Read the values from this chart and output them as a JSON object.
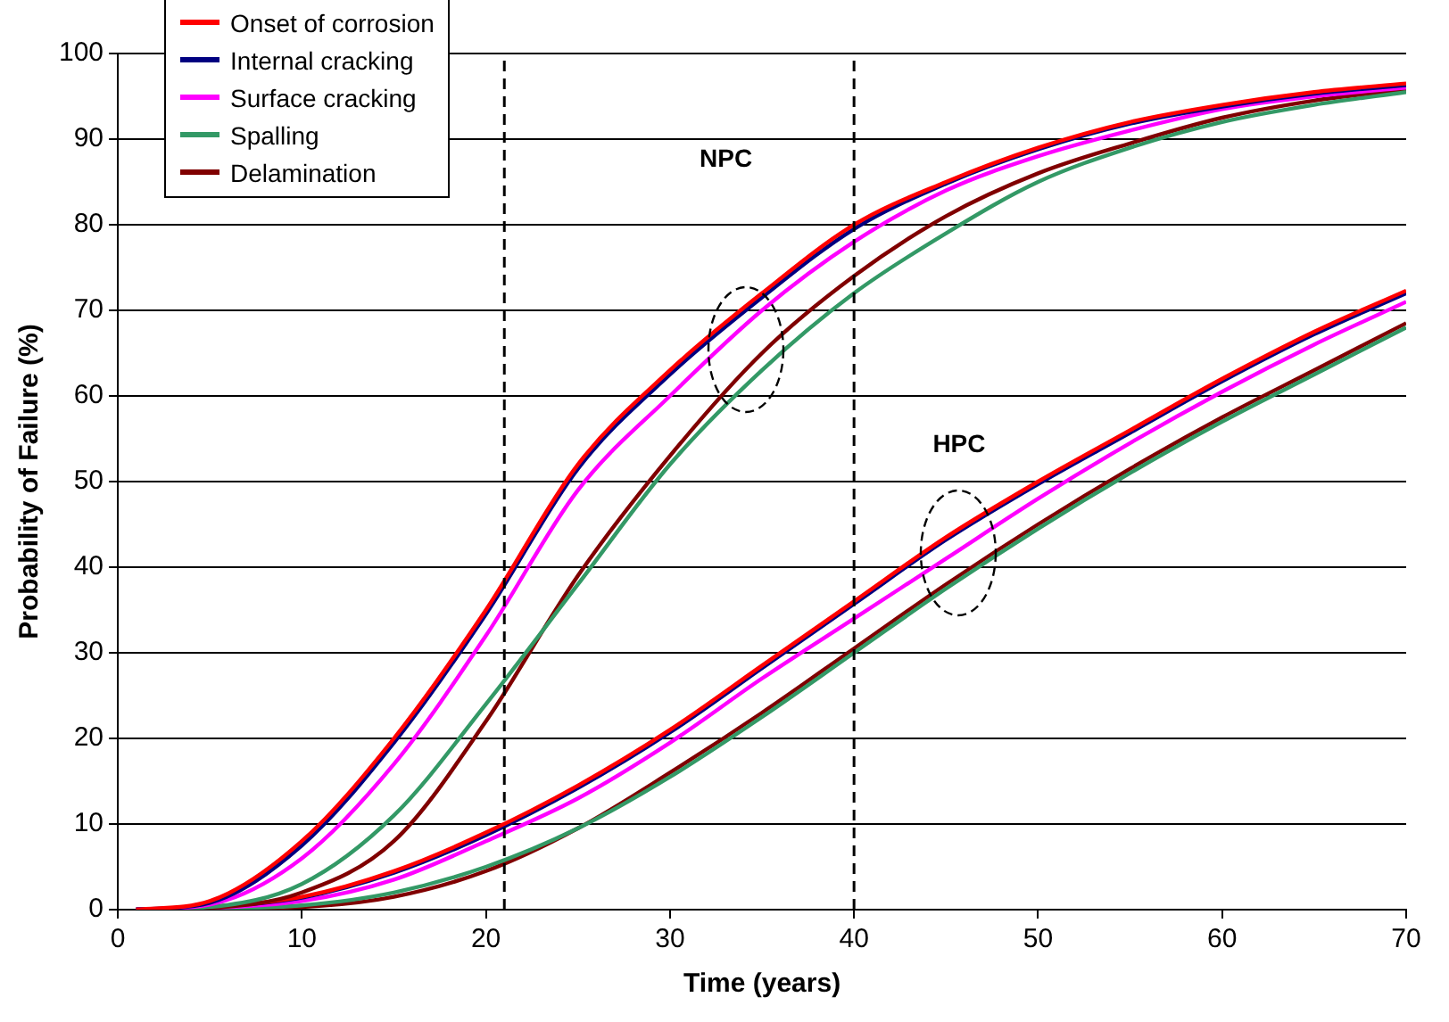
{
  "chart_data": {
    "type": "line",
    "xlabel": "Time (years)",
    "ylabel": "Probability of Failure (%)",
    "x": [
      1,
      5,
      10,
      15,
      20,
      25,
      30,
      35,
      40,
      45,
      50,
      55,
      60,
      65,
      70
    ],
    "xlim": [
      0,
      70
    ],
    "xticks": [
      0,
      10,
      20,
      30,
      40,
      50,
      60,
      70
    ],
    "ylim": [
      0,
      100
    ],
    "yticks": [
      0,
      10,
      20,
      30,
      40,
      50,
      60,
      70,
      80,
      90,
      100
    ],
    "grid": "y",
    "legend": "top left",
    "marker": "none",
    "line_style": "solid",
    "series": [
      {
        "name": "Onset of corrosion",
        "color": "#ff0000",
        "values": [
          0,
          1,
          8,
          20,
          35,
          52,
          63,
          72,
          80,
          85,
          89,
          92,
          94,
          95.5,
          96.5
        ]
      },
      {
        "name": "Internal cracking",
        "color": "#000080",
        "values": [
          0,
          0.8,
          7.5,
          19.5,
          34.5,
          51.5,
          62.5,
          71.5,
          79.5,
          84.8,
          88.8,
          91.8,
          93.8,
          95.3,
          96.3
        ]
      },
      {
        "name": "Surface cracking",
        "color": "#ff00ff",
        "values": [
          0,
          0.6,
          6,
          17,
          32,
          49,
          60,
          70,
          78,
          84,
          88,
          91,
          93.5,
          95,
          96
        ]
      },
      {
        "name": "Spalling",
        "color": "#339966",
        "values": [
          0,
          0.3,
          3,
          11,
          24,
          38,
          52,
          63,
          72,
          79,
          85,
          89,
          92,
          94,
          95.5
        ]
      },
      {
        "name": "Delamination",
        "color": "#800000",
        "values": [
          0,
          0.2,
          2,
          8,
          22,
          39,
          53,
          65,
          74,
          81,
          86,
          89.5,
          92.5,
          94.5,
          95.8
        ]
      },
      {
        "color": "#ff0000",
        "values": [
          0,
          0.3,
          1.5,
          4.5,
          9,
          14.5,
          21,
          28.5,
          36,
          43.5,
          50,
          56,
          62,
          67.5,
          72.3
        ]
      },
      {
        "color": "#000080",
        "values": [
          0,
          0.3,
          1.4,
          4.3,
          8.7,
          14.2,
          20.7,
          28.2,
          35.7,
          43.2,
          49.7,
          55.7,
          61.7,
          67.2,
          72
        ]
      },
      {
        "color": "#ff00ff",
        "values": [
          0,
          0.2,
          1,
          3.5,
          8,
          13,
          19.5,
          27,
          34,
          41,
          48,
          54.5,
          60.5,
          66,
          71
        ]
      },
      {
        "color": "#339966",
        "values": [
          0,
          0.1,
          0.5,
          2,
          5,
          9.5,
          15.5,
          22.5,
          30,
          37.5,
          44.5,
          51,
          57,
          62.5,
          68
        ]
      },
      {
        "color": "#800000",
        "values": [
          0,
          0.1,
          0.3,
          1.5,
          4.5,
          9.5,
          16,
          23,
          30.5,
          38,
          45,
          51.5,
          57.5,
          63,
          68.5
        ]
      }
    ],
    "ref_lines": [
      {
        "axis": "x",
        "value": 21,
        "color": "#000000",
        "line_style": "dashed"
      },
      {
        "axis": "x",
        "value": 40,
        "color": "#000000",
        "line_style": "dashed"
      }
    ],
    "annotations": [
      "NPC",
      "HPC"
    ]
  }
}
